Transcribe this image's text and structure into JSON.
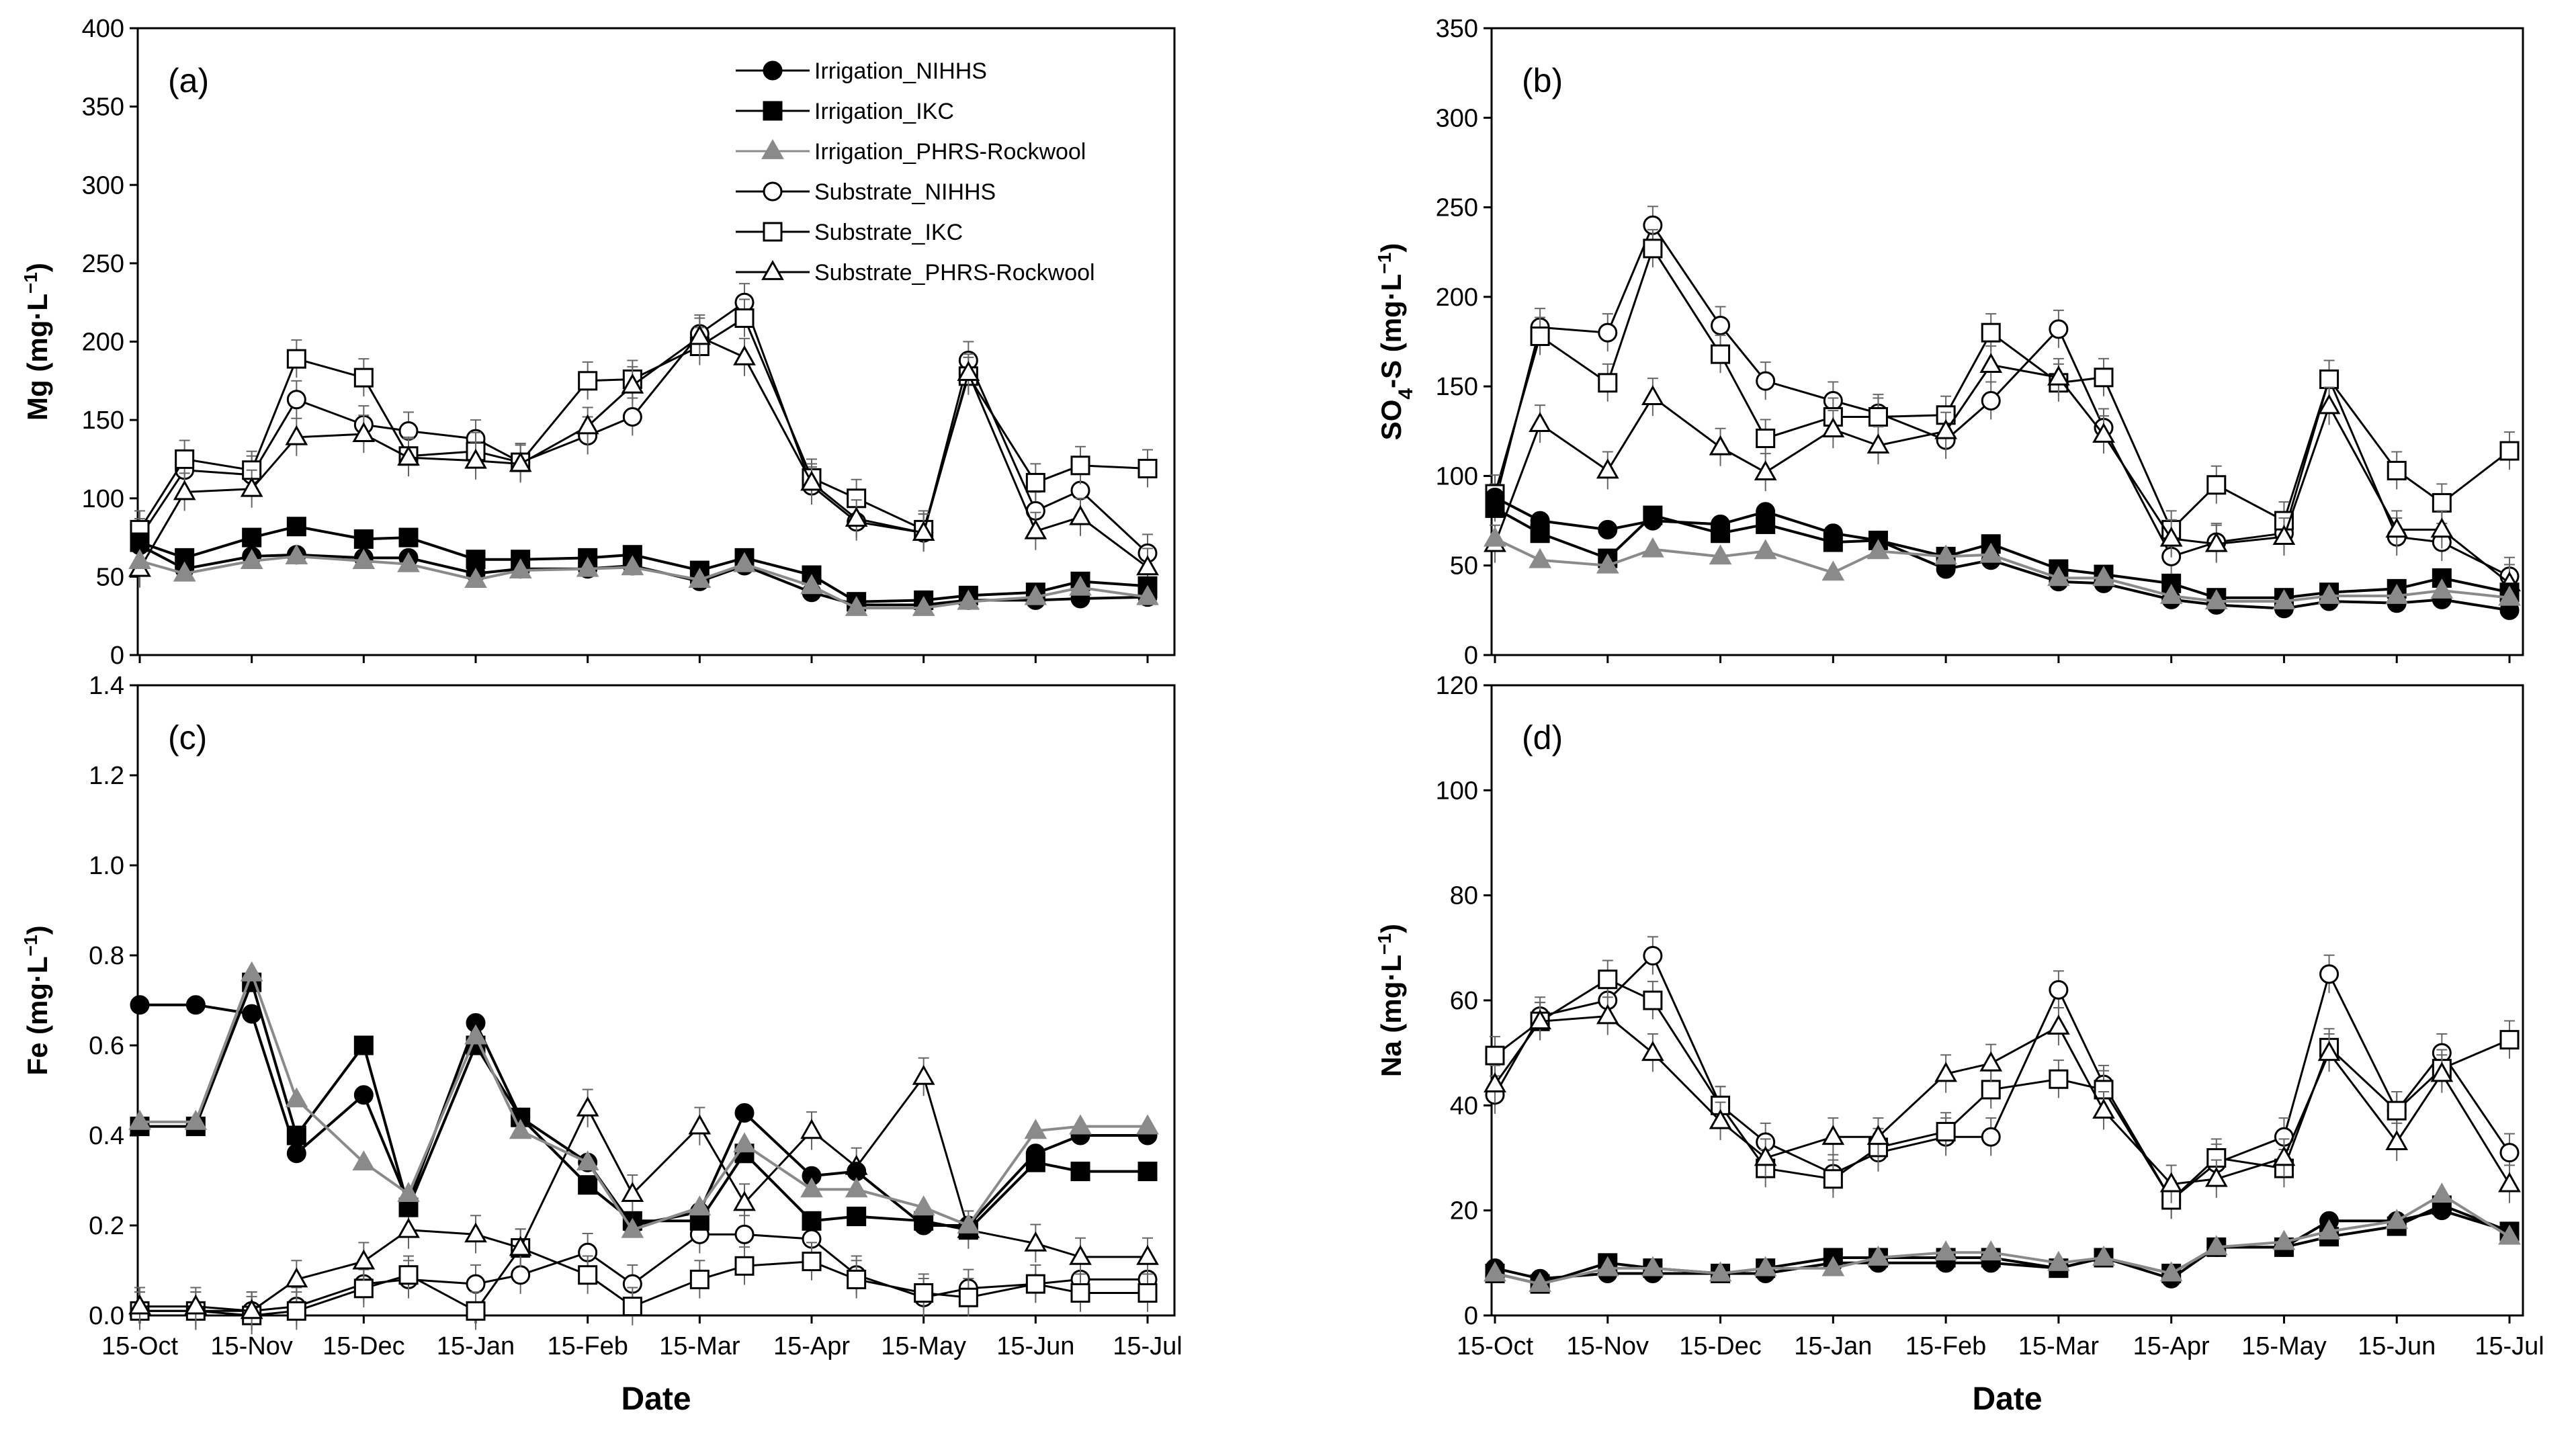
{
  "colors": {
    "irrigation": "#000000",
    "irrigation_rockwool": "#8a8a8a",
    "substrate": "#000000",
    "background": "#ffffff",
    "axis": "#000000"
  },
  "shared_x_ticks": [
    "15-Oct",
    "15-Nov",
    "15-Dec",
    "15-Jan",
    "15-Feb",
    "15-Mar",
    "15-Apr",
    "15-May",
    "15-Jun",
    "15-Jul"
  ],
  "legend": [
    {
      "name": "Irrigation_NIHHS",
      "marker": "circle-filled"
    },
    {
      "name": "Irrigation_IKC",
      "marker": "square-filled"
    },
    {
      "name": "Irrigation_PHRS-Rockwool",
      "marker": "triangle-filled-gray"
    },
    {
      "name": "Substrate_NIHHS",
      "marker": "circle-open"
    },
    {
      "name": "Substrate_IKC",
      "marker": "square-open"
    },
    {
      "name": "Substrate_PHRS-Rockwool",
      "marker": "triangle-open"
    }
  ],
  "chart_data": [
    {
      "type": "line",
      "panel": "(a)",
      "ylabel_main": "Mg",
      "ylabel_unit": "(mg·L",
      "ylabel_exp": "−1",
      "ylabel_close": ")",
      "xlabel": "Date",
      "ylim": [
        0,
        400
      ],
      "yticks": [
        "0",
        "50",
        "100",
        "150",
        "200",
        "250",
        "300",
        "350",
        "400"
      ],
      "x": [
        0,
        0.4,
        1,
        1.4,
        2,
        2.4,
        3,
        3.4,
        4,
        4.4,
        5,
        5.4,
        6,
        6.4,
        7,
        7.4,
        8,
        8.4,
        9
      ],
      "series": [
        {
          "name": "Irrigation_NIHHS",
          "values": [
            70,
            55,
            63,
            64,
            62,
            62,
            52,
            55,
            55,
            57,
            47,
            57,
            40,
            32,
            32,
            35,
            35,
            36,
            37
          ]
        },
        {
          "name": "Irrigation_IKC",
          "values": [
            72,
            62,
            75,
            82,
            74,
            75,
            61,
            61,
            62,
            64,
            54,
            62,
            51,
            34,
            35,
            38,
            40,
            47,
            44
          ]
        },
        {
          "name": "Irrigation_PHRS-Rockwool",
          "values": [
            60,
            52,
            60,
            63,
            60,
            58,
            48,
            54,
            55,
            56,
            48,
            58,
            44,
            30,
            30,
            34,
            37,
            43,
            37
          ]
        },
        {
          "name": "Substrate_NIHHS",
          "values": [
            75,
            118,
            115,
            163,
            147,
            143,
            138,
            123,
            140,
            152,
            205,
            225,
            108,
            85,
            78,
            188,
            92,
            105,
            65
          ]
        },
        {
          "name": "Substrate_IKC",
          "values": [
            80,
            125,
            118,
            189,
            177,
            127,
            130,
            123,
            175,
            176,
            197,
            215,
            113,
            100,
            80,
            178,
            110,
            121,
            119
          ]
        },
        {
          "name": "Substrate_PHRS-Rockwool",
          "values": [
            55,
            104,
            106,
            139,
            141,
            126,
            124,
            122,
            146,
            172,
            203,
            190,
            110,
            87,
            78,
            180,
            79,
            88,
            56
          ]
        }
      ]
    },
    {
      "type": "line",
      "panel": "(b)",
      "ylabel_main": "SO",
      "ylabel_sub": "4",
      "ylabel_unit": "-S (mg·L",
      "ylabel_exp": "−1",
      "ylabel_close": ")",
      "xlabel": "",
      "ylim": [
        0,
        350
      ],
      "yticks": [
        "0",
        "50",
        "100",
        "150",
        "200",
        "250",
        "300",
        "350"
      ],
      "x": [
        0,
        0.4,
        1,
        1.4,
        2,
        2.4,
        3,
        3.4,
        4,
        4.4,
        5,
        5.4,
        6,
        6.4,
        7,
        7.4,
        8,
        8.4,
        9
      ],
      "series": [
        {
          "name": "Irrigation_NIHHS",
          "values": [
            88,
            75,
            70,
            75,
            73,
            80,
            68,
            64,
            48,
            53,
            41,
            40,
            31,
            28,
            26,
            30,
            29,
            31,
            25
          ]
        },
        {
          "name": "Irrigation_IKC",
          "values": [
            82,
            68,
            54,
            78,
            68,
            73,
            63,
            64,
            55,
            62,
            48,
            45,
            40,
            32,
            32,
            35,
            37,
            43,
            35
          ]
        },
        {
          "name": "Irrigation_PHRS-Rockwool",
          "values": [
            65,
            53,
            50,
            59,
            55,
            58,
            46,
            58,
            55,
            56,
            43,
            43,
            33,
            30,
            30,
            33,
            33,
            36,
            32
          ]
        },
        {
          "name": "Substrate_NIHHS",
          "values": [
            85,
            183,
            180,
            240,
            184,
            153,
            142,
            135,
            120,
            142,
            182,
            127,
            55,
            63,
            68,
            154,
            66,
            63,
            44
          ]
        },
        {
          "name": "Substrate_IKC",
          "values": [
            90,
            178,
            152,
            227,
            168,
            121,
            133,
            133,
            134,
            180,
            152,
            155,
            70,
            95,
            75,
            154,
            103,
            85,
            114
          ]
        },
        {
          "name": "Substrate_PHRS-Rockwool",
          "values": [
            62,
            129,
            103,
            144,
            116,
            102,
            126,
            117,
            125,
            162,
            155,
            123,
            65,
            62,
            66,
            139,
            70,
            70,
            40
          ]
        }
      ]
    },
    {
      "type": "line",
      "panel": "(c)",
      "ylabel_main": "Fe",
      "ylabel_unit": "(mg·L",
      "ylabel_exp": "−1",
      "ylabel_close": ")",
      "xlabel": "Date",
      "ylim": [
        0,
        1.4
      ],
      "yticks": [
        "0.0",
        "0.2",
        "0.4",
        "0.6",
        "0.8",
        "1.0",
        "1.2",
        "1.4"
      ],
      "x": [
        0,
        0.5,
        1,
        1.4,
        2,
        2.4,
        3,
        3.4,
        4,
        4.4,
        5,
        5.4,
        6,
        6.4,
        7,
        7.4,
        8,
        8.4,
        9
      ],
      "series": [
        {
          "name": "Irrigation_NIHHS",
          "values": [
            0.69,
            0.69,
            0.67,
            0.36,
            0.49,
            0.25,
            0.65,
            0.44,
            0.34,
            0.2,
            0.23,
            0.45,
            0.31,
            0.32,
            0.2,
            0.2,
            0.36,
            0.4,
            0.4
          ]
        },
        {
          "name": "Irrigation_IKC",
          "values": [
            0.42,
            0.42,
            0.74,
            0.4,
            0.6,
            0.24,
            0.6,
            0.44,
            0.29,
            0.21,
            0.21,
            0.36,
            0.21,
            0.22,
            0.21,
            0.19,
            0.34,
            0.32,
            0.32
          ]
        },
        {
          "name": "Irrigation_PHRS-Rockwool",
          "values": [
            0.43,
            0.43,
            0.76,
            0.48,
            0.34,
            0.27,
            0.62,
            0.41,
            0.34,
            0.19,
            0.24,
            0.38,
            0.28,
            0.28,
            0.24,
            0.2,
            0.41,
            0.42,
            0.42
          ]
        },
        {
          "name": "Substrate_NIHHS",
          "values": [
            0.01,
            0.01,
            0.01,
            0.02,
            0.07,
            0.08,
            0.07,
            0.09,
            0.14,
            0.07,
            0.18,
            0.18,
            0.17,
            0.09,
            0.04,
            0.06,
            0.07,
            0.08,
            0.08
          ]
        },
        {
          "name": "Substrate_IKC",
          "values": [
            0.01,
            0.01,
            0.0,
            0.01,
            0.06,
            0.09,
            0.01,
            0.15,
            0.09,
            0.02,
            0.08,
            0.11,
            0.12,
            0.08,
            0.05,
            0.04,
            0.07,
            0.05,
            0.05
          ]
        },
        {
          "name": "Substrate_PHRS-Rockwool",
          "values": [
            0.02,
            0.02,
            0.01,
            0.08,
            0.12,
            0.19,
            0.18,
            0.15,
            0.46,
            0.27,
            0.42,
            0.25,
            0.41,
            0.33,
            0.53,
            0.19,
            0.16,
            0.13,
            0.13
          ]
        }
      ]
    },
    {
      "type": "line",
      "panel": "(d)",
      "ylabel_main": "Na",
      "ylabel_unit": "(mg·L",
      "ylabel_exp": "−1",
      "ylabel_close": ")",
      "xlabel": "Date",
      "ylim": [
        0,
        120
      ],
      "yticks": [
        "0",
        "20",
        "40",
        "60",
        "80",
        "100",
        "120"
      ],
      "x": [
        0,
        0.4,
        1,
        1.4,
        2,
        2.4,
        3,
        3.4,
        4,
        4.4,
        5,
        5.4,
        6,
        6.4,
        7,
        7.4,
        8,
        8.4,
        9
      ],
      "series": [
        {
          "name": "Irrigation_NIHHS",
          "values": [
            9,
            7,
            8,
            8,
            8,
            8,
            10,
            10,
            10,
            10,
            9,
            11,
            7,
            13,
            13,
            18,
            18,
            20,
            16
          ]
        },
        {
          "name": "Irrigation_IKC",
          "values": [
            8,
            6,
            10,
            9,
            8,
            9,
            11,
            11,
            11,
            11,
            9,
            11,
            8,
            13,
            13,
            15,
            17,
            21,
            16
          ]
        },
        {
          "name": "Irrigation_PHRS-Rockwool",
          "values": [
            8,
            6,
            9,
            9,
            8,
            9,
            9,
            11,
            12,
            12,
            10,
            11,
            8,
            13,
            14,
            16,
            18,
            23,
            15
          ]
        },
        {
          "name": "Substrate_NIHHS",
          "values": [
            42,
            57,
            60,
            68.5,
            40,
            33,
            27,
            31,
            34,
            34,
            62,
            44,
            22,
            29,
            34,
            65,
            39,
            50,
            31
          ]
        },
        {
          "name": "Substrate_IKC",
          "values": [
            49.5,
            56,
            64,
            60,
            40,
            28,
            26,
            32,
            35,
            43,
            45,
            43,
            22,
            30,
            28,
            51,
            39,
            47,
            52.5
          ]
        },
        {
          "name": "Substrate_PHRS-Rockwool",
          "values": [
            44,
            56,
            57,
            50,
            37,
            30,
            34,
            34,
            46,
            48,
            55,
            39,
            25,
            26,
            30,
            50,
            33,
            46,
            25
          ]
        }
      ]
    }
  ]
}
